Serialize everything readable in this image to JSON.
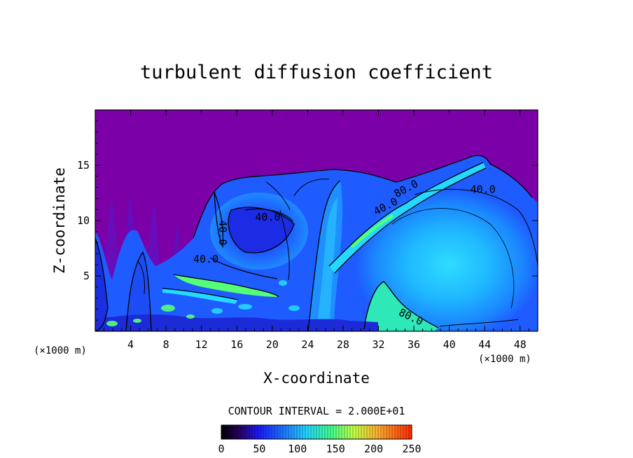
{
  "chart_data": {
    "type": "heatmap",
    "title": "turbulent diffusion coefficient",
    "xlabel": "X-coordinate",
    "ylabel": "Z-coordinate",
    "x_unit": "(×1000 m)",
    "y_unit": "(×1000 m)",
    "xlim": [
      0,
      50
    ],
    "ylim": [
      0,
      20
    ],
    "x_ticks": [
      4,
      8,
      12,
      16,
      20,
      24,
      28,
      32,
      36,
      40,
      44,
      48
    ],
    "y_ticks": [
      5,
      10,
      15
    ],
    "contour_interval_text": "CONTOUR INTERVAL = 2.000E+01",
    "contour_labels": [
      {
        "text": "40.0",
        "x": 43.8,
        "z": 12.5
      },
      {
        "text": "40.0",
        "x": 19.5,
        "z": 10.0
      },
      {
        "text": "40.0",
        "x": 14.0,
        "z": 8.9
      },
      {
        "text": "40.0",
        "x": 12.5,
        "z": 6.2
      },
      {
        "text": "40.0",
        "x": 33.0,
        "z": 11.0
      },
      {
        "text": "80.0",
        "x": 35.3,
        "z": 12.6
      },
      {
        "text": "80.0",
        "x": 35.5,
        "z": 1.0
      }
    ],
    "colorbar": {
      "min": 0,
      "max": 250,
      "ticks": [
        0,
        50,
        100,
        150,
        200,
        250
      ]
    },
    "colors": {
      "background": "#7b00a8",
      "dark_blue": "#1c22e6",
      "mid_blue": "#1e5cff",
      "light_blue": "#1aa8ff",
      "cyan": "#24d8ff",
      "aqua_green": "#2ee8b8",
      "green": "#55ff77"
    }
  }
}
